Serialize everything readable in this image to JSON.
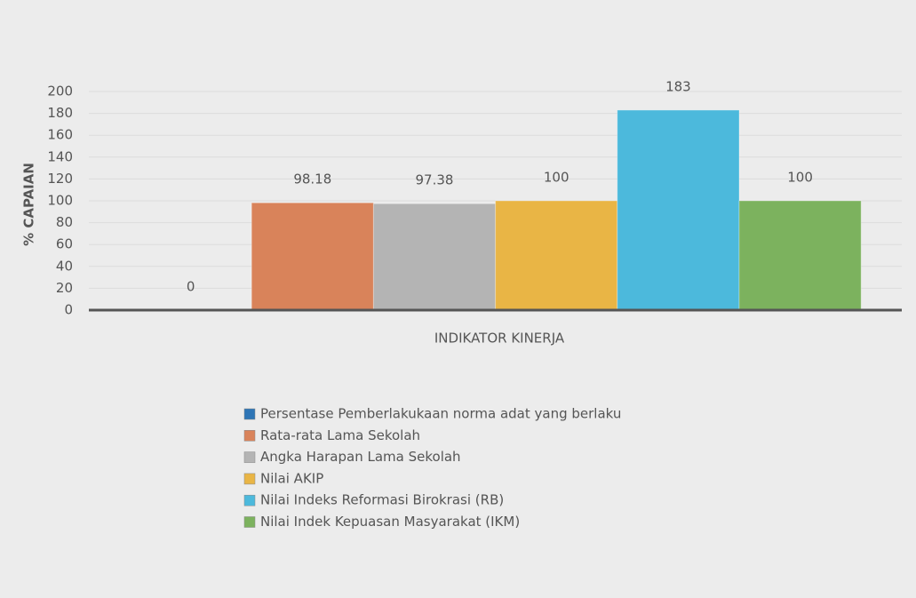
{
  "chart_data": {
    "type": "bar",
    "xlabel": "INDIKATOR KINERJA",
    "ylabel": "% CAPAIAN",
    "series": [
      {
        "name": "Persentase Pemberlakukaan norma adat yang berlaku",
        "color": "#2e75b6",
        "values": [
          0
        ]
      },
      {
        "name": "Rata-rata Lama Sekolah",
        "color": "#d9835a",
        "values": [
          98.18
        ]
      },
      {
        "name": "Angka Harapan Lama Sekolah",
        "color": "#b4b4b4",
        "values": [
          97.38
        ]
      },
      {
        "name": "Nilai AKIP",
        "color": "#e9b545",
        "values": [
          100
        ]
      },
      {
        "name": "Nilai Indeks Reformasi Birokrasi (RB)",
        "color": "#4cb9dc",
        "values": [
          183
        ]
      },
      {
        "name": "Nilai Indek Kepuasan Masyarakat (IKM)",
        "color": "#7cb25e",
        "values": [
          100
        ]
      }
    ],
    "ylim": [
      0,
      200
    ],
    "yticks": [
      0,
      20,
      40,
      60,
      80,
      100,
      120,
      140,
      160,
      180,
      200
    ],
    "grid": true,
    "legend": "bottom"
  }
}
